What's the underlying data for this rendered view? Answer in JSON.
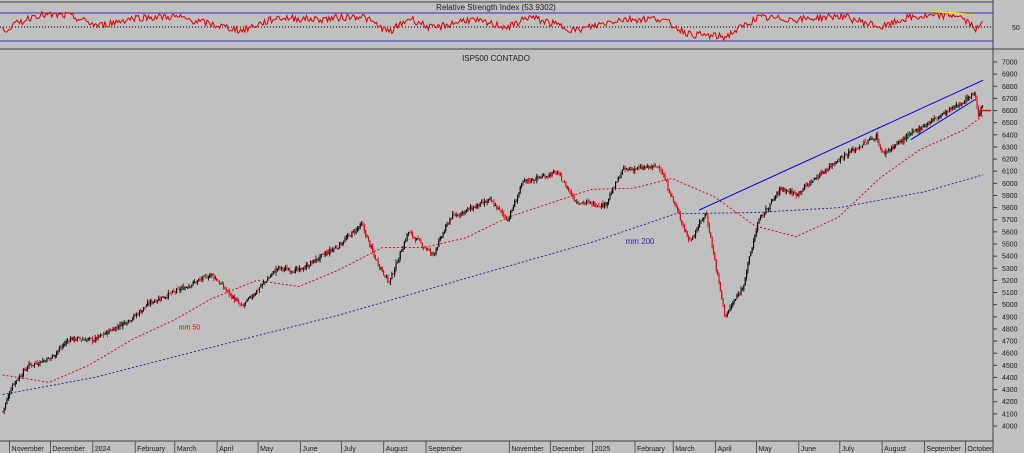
{
  "rsi_panel": {
    "title": "Relative Strength Index (53.9302)",
    "level_label": "50",
    "colors": {
      "line": "#e00000",
      "bands": "#3030d0",
      "mid": "#000000",
      "trendline": "#f0e000"
    }
  },
  "price_panel": {
    "title": "ISP500 CONTADO",
    "ma50_label": "mm 50",
    "ma200_label": "mm 200",
    "y_ticks": [
      "7000",
      "6900",
      "6800",
      "6700",
      "6600",
      "6500",
      "6400",
      "6300",
      "6200",
      "6100",
      "6000",
      "5900",
      "5800",
      "5700",
      "5600",
      "5500",
      "5400",
      "5300",
      "5200",
      "5100",
      "5000",
      "4900",
      "4800",
      "4700",
      "4600",
      "4500",
      "4400",
      "4300",
      "4200",
      "4100",
      "4000"
    ],
    "x_labels": [
      "November",
      "December",
      "2024",
      "February",
      "March",
      "April",
      "May",
      "June",
      "July",
      "August",
      "September",
      "November",
      "December",
      "2025",
      "February",
      "March",
      "April",
      "May",
      "June",
      "July",
      "August",
      "September",
      "October"
    ],
    "colors": {
      "background": "#c0c0c0",
      "up_candle": "#000000",
      "down_candle": "#e00000",
      "ma50": "#e00000",
      "ma200": "#2020b0",
      "trendline": "#0000e0",
      "axis_text": "#202020",
      "ma200_label": "#4020a0"
    }
  },
  "chart_data": {
    "type": "candlestick",
    "ylim": [
      4000,
      7000
    ],
    "last_value": 6580,
    "close_path": [
      {
        "x": "2023-10-27",
        "y": 4120
      },
      {
        "x": "2023-11-03",
        "y": 4340
      },
      {
        "x": "2023-11-15",
        "y": 4500
      },
      {
        "x": "2023-12-01",
        "y": 4560
      },
      {
        "x": "2023-12-15",
        "y": 4720
      },
      {
        "x": "2024-01-02",
        "y": 4710
      },
      {
        "x": "2024-01-31",
        "y": 4900
      },
      {
        "x": "2024-02-12",
        "y": 5020
      },
      {
        "x": "2024-02-29",
        "y": 5100
      },
      {
        "x": "2024-03-28",
        "y": 5250
      },
      {
        "x": "2024-04-19",
        "y": 4980
      },
      {
        "x": "2024-05-15",
        "y": 5300
      },
      {
        "x": "2024-05-31",
        "y": 5280
      },
      {
        "x": "2024-06-28",
        "y": 5480
      },
      {
        "x": "2024-07-16",
        "y": 5660
      },
      {
        "x": "2024-07-25",
        "y": 5400
      },
      {
        "x": "2024-08-05",
        "y": 5180
      },
      {
        "x": "2024-08-19",
        "y": 5600
      },
      {
        "x": "2024-09-06",
        "y": 5410
      },
      {
        "x": "2024-09-19",
        "y": 5720
      },
      {
        "x": "2024-10-18",
        "y": 5860
      },
      {
        "x": "2024-10-31",
        "y": 5700
      },
      {
        "x": "2024-11-11",
        "y": 6010
      },
      {
        "x": "2024-12-06",
        "y": 6090
      },
      {
        "x": "2024-12-20",
        "y": 5850
      },
      {
        "x": "2025-01-10",
        "y": 5820
      },
      {
        "x": "2025-01-23",
        "y": 6110
      },
      {
        "x": "2025-02-19",
        "y": 6140
      },
      {
        "x": "2025-03-13",
        "y": 5520
      },
      {
        "x": "2025-03-25",
        "y": 5760
      },
      {
        "x": "2025-04-08",
        "y": 4900
      },
      {
        "x": "2025-04-21",
        "y": 5150
      },
      {
        "x": "2025-05-02",
        "y": 5680
      },
      {
        "x": "2025-05-19",
        "y": 5960
      },
      {
        "x": "2025-05-30",
        "y": 5910
      },
      {
        "x": "2025-06-30",
        "y": 6200
      },
      {
        "x": "2025-07-28",
        "y": 6390
      },
      {
        "x": "2025-08-01",
        "y": 6240
      },
      {
        "x": "2025-08-29",
        "y": 6460
      },
      {
        "x": "2025-09-25",
        "y": 6640
      },
      {
        "x": "2025-10-08",
        "y": 6750
      },
      {
        "x": "2025-10-10",
        "y": 6560
      },
      {
        "x": "2025-10-14",
        "y": 6640
      }
    ],
    "ma50": [
      {
        "x": "2023-10-27",
        "y": 4420
      },
      {
        "x": "2023-11-30",
        "y": 4360
      },
      {
        "x": "2023-12-29",
        "y": 4500
      },
      {
        "x": "2024-01-31",
        "y": 4720
      },
      {
        "x": "2024-02-29",
        "y": 4870
      },
      {
        "x": "2024-03-28",
        "y": 5050
      },
      {
        "x": "2024-04-30",
        "y": 5200
      },
      {
        "x": "2024-05-31",
        "y": 5150
      },
      {
        "x": "2024-06-28",
        "y": 5280
      },
      {
        "x": "2024-07-31",
        "y": 5470
      },
      {
        "x": "2024-08-30",
        "y": 5470
      },
      {
        "x": "2024-09-30",
        "y": 5550
      },
      {
        "x": "2024-10-31",
        "y": 5720
      },
      {
        "x": "2024-11-29",
        "y": 5830
      },
      {
        "x": "2024-12-31",
        "y": 5950
      },
      {
        "x": "2025-01-31",
        "y": 5960
      },
      {
        "x": "2025-02-28",
        "y": 6040
      },
      {
        "x": "2025-03-31",
        "y": 5890
      },
      {
        "x": "2025-04-30",
        "y": 5650
      },
      {
        "x": "2025-05-30",
        "y": 5560
      },
      {
        "x": "2025-06-30",
        "y": 5720
      },
      {
        "x": "2025-07-31",
        "y": 6050
      },
      {
        "x": "2025-08-29",
        "y": 6280
      },
      {
        "x": "2025-09-30",
        "y": 6440
      },
      {
        "x": "2025-10-14",
        "y": 6560
      }
    ],
    "ma200": [
      {
        "x": "2023-10-27",
        "y": 4260
      },
      {
        "x": "2024-01-02",
        "y": 4400
      },
      {
        "x": "2024-04-01",
        "y": 4660
      },
      {
        "x": "2024-07-01",
        "y": 4920
      },
      {
        "x": "2024-10-01",
        "y": 5220
      },
      {
        "x": "2025-01-02",
        "y": 5520
      },
      {
        "x": "2025-03-03",
        "y": 5750
      },
      {
        "x": "2025-05-01",
        "y": 5760
      },
      {
        "x": "2025-07-01",
        "y": 5800
      },
      {
        "x": "2025-09-01",
        "y": 5930
      },
      {
        "x": "2025-10-14",
        "y": 6070
      }
    ],
    "trendlines": [
      {
        "from": {
          "x": "2025-03-20",
          "y": 5780
        },
        "to": {
          "x": "2025-10-14",
          "y": 6850
        }
      },
      {
        "from": {
          "x": "2025-08-22",
          "y": 6360
        },
        "to": {
          "x": "2025-10-08",
          "y": 6690
        }
      }
    ],
    "horizontal_mark": {
      "x0": "2025-10-10",
      "x1": "2025-10-14",
      "y": 6600
    },
    "rsi": {
      "ylim": [
        0,
        100
      ],
      "levels": [
        30,
        50,
        70
      ],
      "last_value": 53.9302,
      "path": [
        {
          "x": "2023-10-27",
          "y": 38
        },
        {
          "x": "2023-11-20",
          "y": 72
        },
        {
          "x": "2023-12-15",
          "y": 70
        },
        {
          "x": "2024-01-05",
          "y": 48
        },
        {
          "x": "2024-02-01",
          "y": 66
        },
        {
          "x": "2024-03-01",
          "y": 68
        },
        {
          "x": "2024-04-19",
          "y": 38
        },
        {
          "x": "2024-05-15",
          "y": 66
        },
        {
          "x": "2024-06-15",
          "y": 62
        },
        {
          "x": "2024-07-16",
          "y": 70
        },
        {
          "x": "2024-08-05",
          "y": 34
        },
        {
          "x": "2024-08-20",
          "y": 65
        },
        {
          "x": "2024-09-06",
          "y": 42
        },
        {
          "x": "2024-10-01",
          "y": 62
        },
        {
          "x": "2024-11-01",
          "y": 45
        },
        {
          "x": "2024-11-15",
          "y": 68
        },
        {
          "x": "2024-12-20",
          "y": 38
        },
        {
          "x": "2025-01-20",
          "y": 62
        },
        {
          "x": "2025-02-19",
          "y": 64
        },
        {
          "x": "2025-03-13",
          "y": 30
        },
        {
          "x": "2025-04-08",
          "y": 24
        },
        {
          "x": "2025-05-02",
          "y": 66
        },
        {
          "x": "2025-06-01",
          "y": 62
        },
        {
          "x": "2025-07-01",
          "y": 70
        },
        {
          "x": "2025-08-01",
          "y": 45
        },
        {
          "x": "2025-08-20",
          "y": 66
        },
        {
          "x": "2025-09-25",
          "y": 72
        },
        {
          "x": "2025-10-10",
          "y": 40
        },
        {
          "x": "2025-10-14",
          "y": 54
        }
      ]
    }
  }
}
